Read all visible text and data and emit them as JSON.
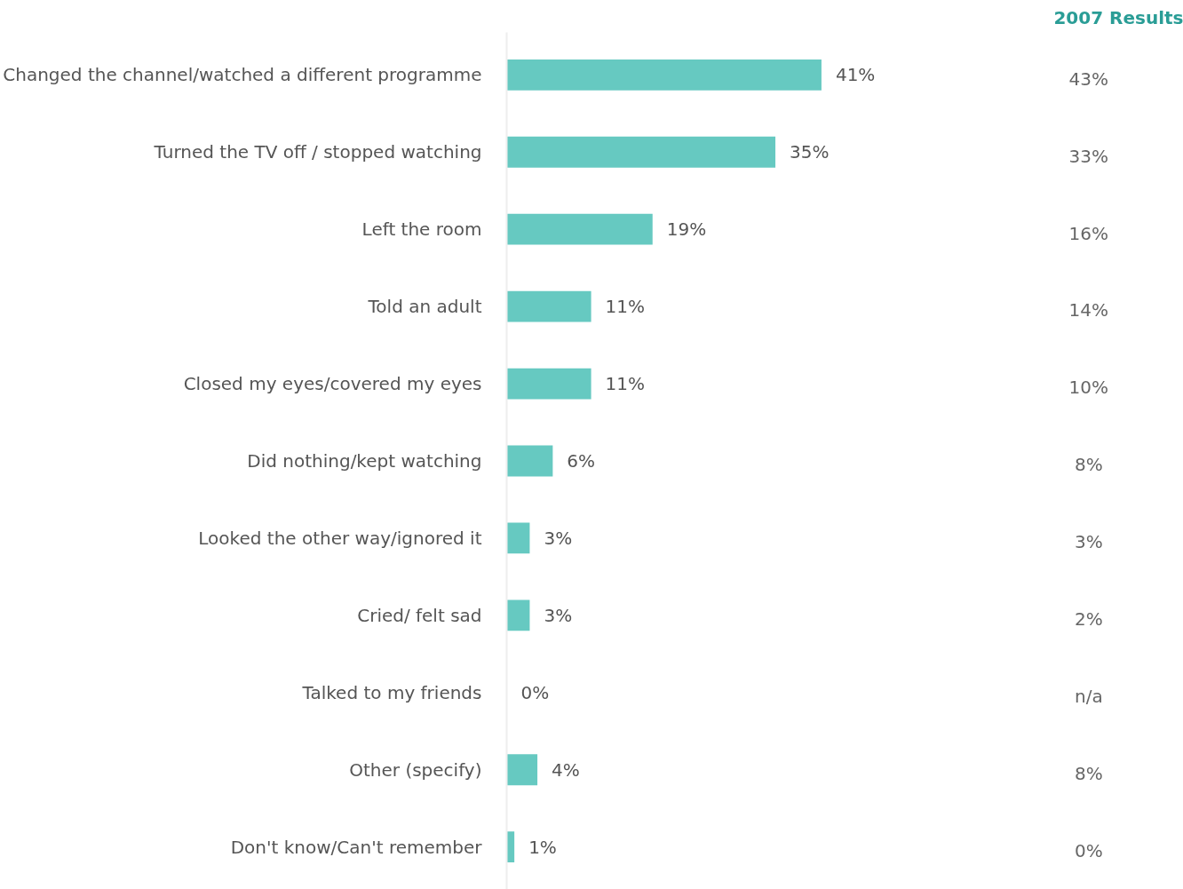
{
  "chart_data": {
    "type": "bar",
    "orientation": "horizontal",
    "categories": [
      "Changed the channel/watched a different programme",
      "Turned the TV off / stopped watching",
      "Left the room",
      "Told an adult",
      "Closed my eyes/covered my eyes",
      "Did nothing/kept watching",
      "Looked the other way/ignored it",
      "Cried/ felt sad",
      "Talked to my friends",
      "Other (specify)",
      "Don't know/Can't remember"
    ],
    "values": [
      41,
      35,
      19,
      11,
      11,
      6,
      3,
      3,
      0,
      4,
      1
    ],
    "value_labels": [
      "41%",
      "35%",
      "19%",
      "11%",
      "11%",
      "6%",
      "3%",
      "3%",
      "0%",
      "4%",
      "1%"
    ],
    "color": "#66c9c1",
    "tick_labels": "y",
    "grid": false,
    "annotations": [
      "2007 Results",
      "43%",
      "33%",
      "16%",
      "14%",
      "10%",
      "8%",
      "3%",
      "2%",
      "n/a",
      "8%",
      "0%"
    ]
  }
}
